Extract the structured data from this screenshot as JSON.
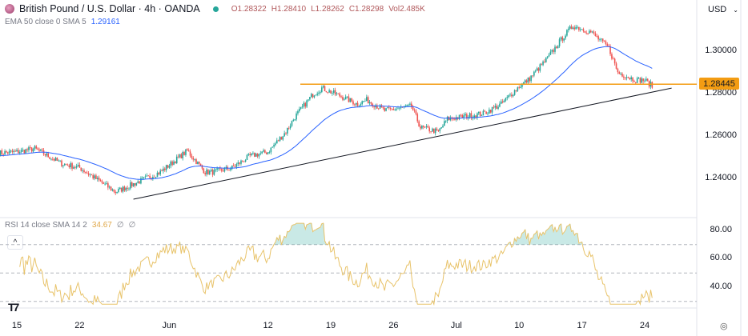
{
  "header": {
    "symbol_title": "British Pound / U.S. Dollar · 4h · OANDA",
    "open": "O1.28322",
    "high": "H1.28410",
    "low": "L1.28262",
    "close": "C1.28298",
    "volume": "Vol2.485K",
    "market_status_color": "#26a69a"
  },
  "indicators": {
    "ema_label": "EMA 50 close 0 SMA 5",
    "ema_value": "1.29161",
    "rsi_label": "RSI 14 close SMA 14 2",
    "rsi_value": "34.67",
    "rsi_extra1": "∅",
    "rsi_extra2": "∅"
  },
  "currency_button": {
    "label": "USD",
    "icon": "chevron-down-icon"
  },
  "price_scale": [
    "1.30000",
    "1.28000",
    "1.26000",
    "1.24000"
  ],
  "rsi_scale": [
    "80.00",
    "60.00",
    "40.00"
  ],
  "time_axis": [
    "15",
    "22",
    "Jun",
    "12",
    "19",
    "26",
    "Jul",
    "10",
    "17",
    "24"
  ],
  "horizontal_line_label": "1.28445",
  "colors": {
    "up": "#26a69a",
    "down": "#ef5350",
    "ema": "#2962ff",
    "rsi": "#e8c36a",
    "hline": "#f39c12",
    "trendline": "#131722"
  },
  "chart_data": {
    "type": "candlestick",
    "interval": "4h",
    "price_range": [
      1.225,
      1.318
    ],
    "rsi_range": [
      20,
      90
    ],
    "rsi_levels": [
      70,
      50,
      30
    ],
    "horizontal_line": 1.28445,
    "trendline": [
      [
        "2023-05-28",
        1.2302
      ],
      [
        "2023-07-27",
        1.2826
      ]
    ],
    "ema_period": 50,
    "rsi_period": 14,
    "close_path": [
      [
        "2023-05-13",
        1.252
      ],
      [
        "2023-05-15",
        1.2525
      ],
      [
        "2023-05-17",
        1.254
      ],
      [
        "2023-05-20",
        1.247
      ],
      [
        "2023-05-22",
        1.245
      ],
      [
        "2023-05-26",
        1.2336
      ],
      [
        "2023-05-31",
        1.243
      ],
      [
        "2023-06-03",
        1.253
      ],
      [
        "2023-06-05",
        1.243
      ],
      [
        "2023-06-06",
        1.243
      ],
      [
        "2023-06-08",
        1.245
      ],
      [
        "2023-06-10",
        1.2506
      ],
      [
        "2023-06-12",
        1.2525
      ],
      [
        "2023-06-14",
        1.262
      ],
      [
        "2023-06-15",
        1.269
      ],
      [
        "2023-06-17",
        1.2796
      ],
      [
        "2023-06-18",
        1.2826
      ],
      [
        "2023-06-20",
        1.279
      ],
      [
        "2023-06-22",
        1.275
      ],
      [
        "2023-06-23",
        1.277
      ],
      [
        "2023-06-25",
        1.272
      ],
      [
        "2023-06-28",
        1.274
      ],
      [
        "2023-06-29",
        1.264
      ],
      [
        "2023-07-01",
        1.262
      ],
      [
        "2023-07-02",
        1.268
      ],
      [
        "2023-07-06",
        1.2706
      ],
      [
        "2023-07-08",
        1.275
      ],
      [
        "2023-07-10",
        1.2834
      ],
      [
        "2023-07-11",
        1.2864
      ],
      [
        "2023-07-13",
        1.2958
      ],
      [
        "2023-07-15",
        1.3072
      ],
      [
        "2023-07-16",
        1.312
      ],
      [
        "2023-07-18",
        1.309
      ],
      [
        "2023-07-20",
        1.3015
      ],
      [
        "2023-07-21",
        1.29
      ],
      [
        "2023-07-23",
        1.2864
      ],
      [
        "2023-07-24",
        1.2864
      ],
      [
        "2023-07-25",
        1.283
      ]
    ],
    "time_ticks": [
      [
        "2023-05-15",
        "15"
      ],
      [
        "2023-05-22",
        "22"
      ],
      [
        "2023-06-01",
        "Jun"
      ],
      [
        "2023-06-12",
        "12"
      ],
      [
        "2023-06-19",
        "19"
      ],
      [
        "2023-06-26",
        "26"
      ],
      [
        "2023-07-03",
        "Jul"
      ],
      [
        "2023-07-10",
        "10"
      ],
      [
        "2023-07-17",
        "17"
      ],
      [
        "2023-07-24",
        "24"
      ]
    ]
  }
}
